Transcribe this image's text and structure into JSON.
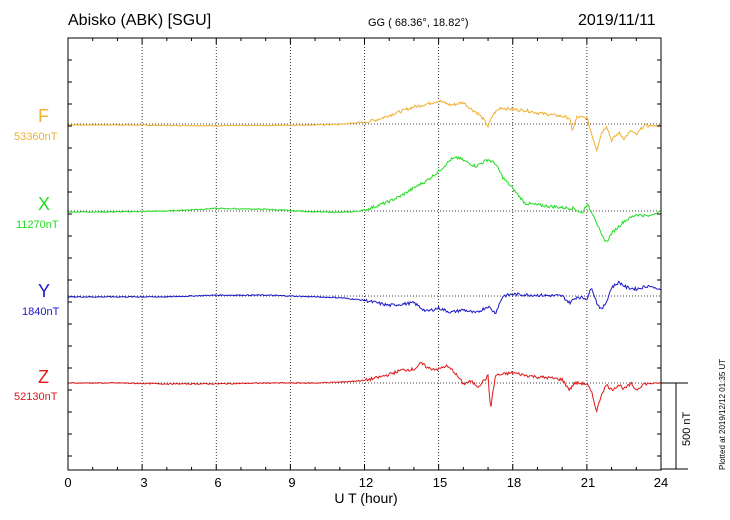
{
  "header": {
    "station": "Abisko (ABK)  [SGU]",
    "coords": "GG ( 68.36°,  18.82°)",
    "date": "2019/11/11"
  },
  "footer": {
    "plotted": "Plotted at 2019/12/12 01:35 UT"
  },
  "colors": {
    "F": "#f0b030",
    "X": "#22dd22",
    "Y": "#1818c8",
    "Z": "#e01818"
  },
  "chart_data": {
    "type": "line",
    "title": "Abisko (ABK)  [SGU]",
    "xlabel": "U T (hour)",
    "ylabel": "",
    "xlim": [
      0,
      24
    ],
    "x_ticks": [
      "0",
      "3",
      "6",
      "9",
      "12",
      "15",
      "18",
      "21",
      "24"
    ],
    "scale_label": "500 nT",
    "scale_nT": 500,
    "grid": true,
    "series": [
      {
        "name": "F",
        "baseline_label": "53360nT",
        "color": "#f0b030",
        "points": [
          [
            0,
            -5
          ],
          [
            2,
            -5
          ],
          [
            4,
            -8
          ],
          [
            6,
            -10
          ],
          [
            8,
            -8
          ],
          [
            10,
            -5
          ],
          [
            11,
            -2
          ],
          [
            11.5,
            5
          ],
          [
            12,
            10
          ],
          [
            12.5,
            25
          ],
          [
            13,
            50
          ],
          [
            13.5,
            75
          ],
          [
            14,
            100
          ],
          [
            14.5,
            115
          ],
          [
            15,
            135
          ],
          [
            15.5,
            110
          ],
          [
            16,
            125
          ],
          [
            16.3,
            90
          ],
          [
            16.6,
            60
          ],
          [
            16.8,
            30
          ],
          [
            17,
            -15
          ],
          [
            17.2,
            55
          ],
          [
            17.5,
            95
          ],
          [
            18,
            85
          ],
          [
            18.5,
            80
          ],
          [
            19,
            65
          ],
          [
            19.5,
            55
          ],
          [
            20,
            45
          ],
          [
            20.3,
            35
          ],
          [
            20.4,
            -40
          ],
          [
            20.6,
            40
          ],
          [
            21,
            35
          ],
          [
            21.2,
            -60
          ],
          [
            21.4,
            -150
          ],
          [
            21.6,
            -50
          ],
          [
            21.8,
            -10
          ],
          [
            22,
            -95
          ],
          [
            22.3,
            -50
          ],
          [
            22.5,
            -85
          ],
          [
            22.8,
            -40
          ],
          [
            23,
            -65
          ],
          [
            23.3,
            -10
          ],
          [
            24,
            -10
          ]
        ]
      },
      {
        "name": "X",
        "baseline_label": "11270nT",
        "color": "#22dd22",
        "points": [
          [
            0,
            -5
          ],
          [
            2,
            -5
          ],
          [
            4,
            0
          ],
          [
            6,
            15
          ],
          [
            8,
            10
          ],
          [
            10,
            -5
          ],
          [
            11,
            -8
          ],
          [
            11.5,
            -5
          ],
          [
            12,
            5
          ],
          [
            12.5,
            30
          ],
          [
            13,
            55
          ],
          [
            13.5,
            90
          ],
          [
            14,
            135
          ],
          [
            14.5,
            175
          ],
          [
            15,
            230
          ],
          [
            15.5,
            300
          ],
          [
            15.8,
            310
          ],
          [
            16.2,
            280
          ],
          [
            16.5,
            260
          ],
          [
            17,
            300
          ],
          [
            17.3,
            275
          ],
          [
            17.6,
            195
          ],
          [
            18,
            130
          ],
          [
            18.5,
            45
          ],
          [
            19,
            35
          ],
          [
            20,
            20
          ],
          [
            20.5,
            15
          ],
          [
            20.8,
            -15
          ],
          [
            21,
            40
          ],
          [
            21.3,
            -30
          ],
          [
            21.6,
            -145
          ],
          [
            21.8,
            -180
          ],
          [
            22,
            -130
          ],
          [
            22.5,
            -60
          ],
          [
            23,
            -20
          ],
          [
            23.5,
            -30
          ],
          [
            24,
            0
          ]
        ]
      },
      {
        "name": "Y",
        "baseline_label": "1840nT",
        "color": "#1818c8",
        "points": [
          [
            0,
            -5
          ],
          [
            2,
            -5
          ],
          [
            4,
            -5
          ],
          [
            6,
            5
          ],
          [
            8,
            5
          ],
          [
            10,
            -5
          ],
          [
            11,
            -10
          ],
          [
            12,
            -25
          ],
          [
            13,
            -55
          ],
          [
            14,
            -40
          ],
          [
            14.5,
            -90
          ],
          [
            15,
            -70
          ],
          [
            15.5,
            -95
          ],
          [
            16,
            -80
          ],
          [
            16.5,
            -100
          ],
          [
            17,
            -60
          ],
          [
            17.3,
            -100
          ],
          [
            17.6,
            0
          ],
          [
            18,
            10
          ],
          [
            19,
            5
          ],
          [
            20,
            0
          ],
          [
            20.3,
            -40
          ],
          [
            20.6,
            -5
          ],
          [
            21,
            -15
          ],
          [
            21.2,
            50
          ],
          [
            21.4,
            -40
          ],
          [
            21.6,
            -80
          ],
          [
            21.8,
            -30
          ],
          [
            22,
            50
          ],
          [
            22.3,
            80
          ],
          [
            22.6,
            50
          ],
          [
            23,
            40
          ],
          [
            23.5,
            60
          ],
          [
            24,
            35
          ]
        ]
      },
      {
        "name": "Z",
        "baseline_label": "52130nT",
        "color": "#e01818",
        "points": [
          [
            0,
            0
          ],
          [
            2,
            0
          ],
          [
            4,
            -5
          ],
          [
            6,
            -5
          ],
          [
            8,
            0
          ],
          [
            10,
            0
          ],
          [
            11,
            5
          ],
          [
            12,
            15
          ],
          [
            12.5,
            30
          ],
          [
            13,
            50
          ],
          [
            13.5,
            75
          ],
          [
            14,
            80
          ],
          [
            14.3,
            115
          ],
          [
            14.6,
            85
          ],
          [
            15,
            80
          ],
          [
            15.3,
            100
          ],
          [
            15.6,
            70
          ],
          [
            16,
            -5
          ],
          [
            16.3,
            10
          ],
          [
            16.6,
            -20
          ],
          [
            17,
            40
          ],
          [
            17.1,
            -150
          ],
          [
            17.3,
            45
          ],
          [
            17.6,
            50
          ],
          [
            18,
            60
          ],
          [
            18.5,
            45
          ],
          [
            19,
            35
          ],
          [
            19.5,
            30
          ],
          [
            20,
            20
          ],
          [
            20.3,
            -40
          ],
          [
            20.5,
            0
          ],
          [
            21,
            -5
          ],
          [
            21.2,
            -60
          ],
          [
            21.4,
            -165
          ],
          [
            21.6,
            -60
          ],
          [
            21.8,
            -10
          ],
          [
            22,
            -40
          ],
          [
            22.3,
            -10
          ],
          [
            22.5,
            -35
          ],
          [
            22.8,
            -5
          ],
          [
            23,
            -40
          ],
          [
            23.3,
            -5
          ],
          [
            24,
            0
          ]
        ]
      }
    ]
  }
}
